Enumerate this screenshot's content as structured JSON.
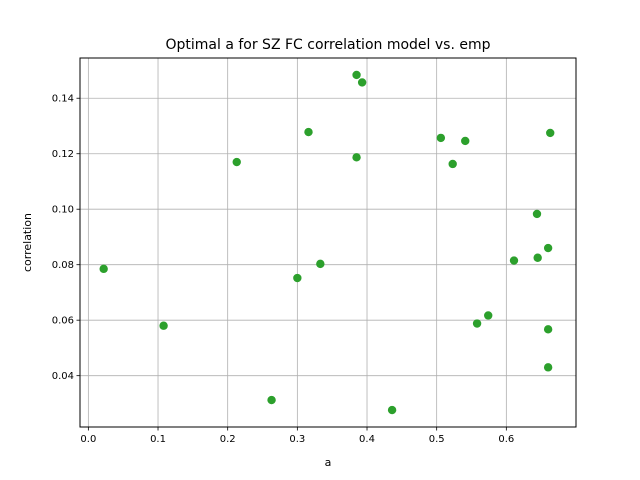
{
  "chart_data": {
    "type": "scatter",
    "title": "Optimal a for SZ FC correlation model vs. emp",
    "xlabel": "a",
    "ylabel": "correlation",
    "xlim": [
      -0.012,
      0.7
    ],
    "ylim": [
      0.0215,
      0.1545
    ],
    "xticks": [
      0.0,
      0.1,
      0.2,
      0.3,
      0.4,
      0.5,
      0.6
    ],
    "xtick_labels": [
      "0.0",
      "0.1",
      "0.2",
      "0.3",
      "0.4",
      "0.5",
      "0.6"
    ],
    "yticks": [
      0.04,
      0.06,
      0.08,
      0.1,
      0.12,
      0.14
    ],
    "ytick_labels": [
      "0.04",
      "0.06",
      "0.08",
      "0.10",
      "0.12",
      "0.14"
    ],
    "grid": true,
    "marker_color": "#2ca02c",
    "series": [
      {
        "name": "points",
        "x": [
          0.022,
          0.108,
          0.213,
          0.263,
          0.3,
          0.316,
          0.333,
          0.385,
          0.385,
          0.393,
          0.436,
          0.506,
          0.523,
          0.541,
          0.558,
          0.574,
          0.611,
          0.644,
          0.645,
          0.66,
          0.66,
          0.66,
          0.663
        ],
        "y": [
          0.0785,
          0.058,
          0.117,
          0.0312,
          0.0752,
          0.1278,
          0.0803,
          0.1484,
          0.1187,
          0.1457,
          0.0276,
          0.1257,
          0.1163,
          0.1246,
          0.0588,
          0.0617,
          0.0815,
          0.0983,
          0.0825,
          0.086,
          0.0567,
          0.043,
          0.1275
        ]
      }
    ]
  }
}
